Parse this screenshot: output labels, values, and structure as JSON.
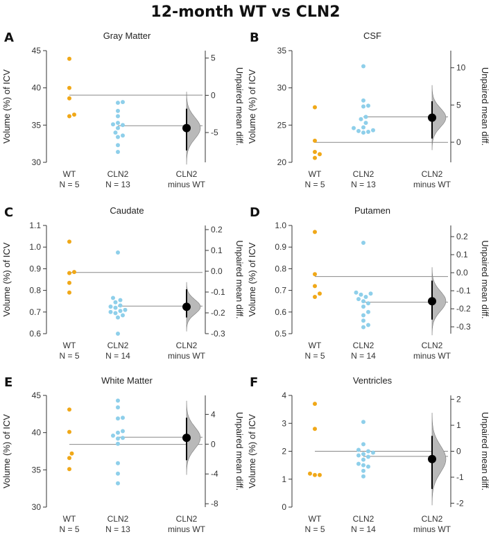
{
  "figure": {
    "title": "12-month WT vs CLN2",
    "colors": {
      "wt": "#F0A818",
      "cln2": "#8ECFEA",
      "axis": "#333333",
      "ref_line": "#888888",
      "dist": "#B9B9B9",
      "effect": "#000000"
    },
    "ylabel_left": "Volume (%) of ICV",
    "ylabel_right": "Unpaired mean diff."
  },
  "chart_data": [
    {
      "type": "scatter",
      "panel": "A",
      "title": "Gray Matter",
      "ylim": [
        30,
        45
      ],
      "yticks": [
        "30",
        "35",
        "40",
        "45"
      ],
      "right_ylim": [
        -9,
        6
      ],
      "right_yticks": [
        "-5",
        "0",
        "5"
      ],
      "groups": [
        {
          "label": "WT",
          "n_label": "N = 5",
          "values": [
            43.9,
            40.0,
            38.6,
            36.4,
            36.2
          ]
        },
        {
          "label": "CLN2",
          "n_label": "N = 13",
          "values": [
            38.1,
            38.0,
            36.9,
            35.3,
            35.1,
            35.0,
            34.0,
            33.6,
            33.4,
            32.3,
            31.4,
            34.6,
            36.2
          ]
        }
      ],
      "effect": {
        "label": "CLN2\nminus WT",
        "mean": 34.6,
        "ci": [
          31.6,
          37.2
        ]
      }
    },
    {
      "type": "scatter",
      "panel": "B",
      "title": "CSF",
      "ylim": [
        20,
        35
      ],
      "yticks": [
        "20",
        "25",
        "30",
        "35"
      ],
      "right_ylim": [
        -2.7,
        12.3
      ],
      "right_yticks": [
        "0",
        "5",
        "10"
      ],
      "groups": [
        {
          "label": "WT",
          "n_label": "N = 5",
          "values": [
            27.4,
            22.9,
            21.4,
            21.1,
            20.6
          ]
        },
        {
          "label": "CLN2",
          "n_label": "N = 13",
          "values": [
            32.9,
            28.3,
            27.6,
            27.5,
            26.1,
            25.8,
            25.3,
            24.7,
            24.3,
            24.2,
            24.1,
            24.0,
            24.6
          ]
        }
      ],
      "effect": {
        "label": "CLN2\nminus WT",
        "mean": 26.0,
        "ci": [
          23.2,
          28.2
        ]
      }
    },
    {
      "type": "scatter",
      "panel": "C",
      "title": "Caudate",
      "ylim": [
        0.6,
        1.1
      ],
      "yticks": [
        "0.6",
        "0.7",
        "0.8",
        "0.9",
        "1.0",
        "1.1"
      ],
      "right_ylim": [
        -0.3,
        0.22
      ],
      "right_yticks": [
        "-0.3",
        "-0.2",
        "-0.1",
        "0.0",
        "0.1",
        "0.2"
      ],
      "groups": [
        {
          "label": "WT",
          "n_label": "N = 5",
          "values": [
            1.025,
            0.885,
            0.88,
            0.835,
            0.79
          ]
        },
        {
          "label": "CLN2",
          "n_label": "N = 14",
          "values": [
            0.975,
            0.765,
            0.755,
            0.745,
            0.73,
            0.725,
            0.72,
            0.71,
            0.705,
            0.7,
            0.695,
            0.685,
            0.675,
            0.6
          ]
        }
      ],
      "effect": {
        "label": "CLN2\nminus WT",
        "mean": 0.724,
        "ci": [
          0.675,
          0.805
        ]
      }
    },
    {
      "type": "scatter",
      "panel": "D",
      "title": "Putamen",
      "ylim": [
        0.5,
        1.0
      ],
      "yticks": [
        "0.5",
        "0.6",
        "0.7",
        "0.8",
        "0.9",
        "1.0"
      ],
      "right_ylim": [
        -0.338,
        0.262
      ],
      "right_yticks": [
        "-0.3",
        "-0.2",
        "-0.1",
        "0.0",
        "0.1",
        "0.2"
      ],
      "groups": [
        {
          "label": "WT",
          "n_label": "N = 5",
          "values": [
            0.97,
            0.775,
            0.72,
            0.685,
            0.67
          ]
        },
        {
          "label": "CLN2",
          "n_label": "N = 14",
          "values": [
            0.92,
            0.69,
            0.685,
            0.68,
            0.67,
            0.66,
            0.65,
            0.64,
            0.625,
            0.6,
            0.585,
            0.56,
            0.54,
            0.53
          ]
        }
      ],
      "effect": {
        "label": "CLN2\nminus WT",
        "mean": 0.65,
        "ci": [
          0.565,
          0.745
        ]
      }
    },
    {
      "type": "scatter",
      "panel": "E",
      "title": "White Matter",
      "ylim": [
        30,
        45
      ],
      "yticks": [
        "30",
        "35",
        "40",
        "45"
      ],
      "right_ylim": [
        -8.45,
        6.55
      ],
      "right_yticks": [
        "-8",
        "-4",
        "0",
        "4"
      ],
      "groups": [
        {
          "label": "WT",
          "n_label": "N = 5",
          "values": [
            43.1,
            40.1,
            37.2,
            36.6,
            35.1
          ]
        },
        {
          "label": "CLN2",
          "n_label": "N = 13",
          "values": [
            44.3,
            43.4,
            42.0,
            41.9,
            40.2,
            40.0,
            39.6,
            39.3,
            39.2,
            38.5,
            35.9,
            34.5,
            33.2
          ]
        }
      ],
      "effect": {
        "label": "CLN2\nminus WT",
        "mean": 39.3,
        "ci": [
          36.3,
          42.0
        ]
      }
    },
    {
      "type": "scatter",
      "panel": "F",
      "title": "Ventricles",
      "ylim": [
        0,
        4
      ],
      "yticks": [
        "0",
        "1",
        "2",
        "3",
        "4"
      ],
      "right_ylim": [
        -2.15,
        2.15
      ],
      "right_yticks": [
        "-2",
        "-1",
        "0",
        "1",
        "2"
      ],
      "groups": [
        {
          "label": "WT",
          "n_label": "N = 5",
          "values": [
            3.7,
            2.8,
            1.2,
            1.15,
            1.15
          ]
        },
        {
          "label": "CLN2",
          "n_label": "N = 14",
          "values": [
            3.05,
            2.25,
            2.05,
            2.0,
            1.95,
            1.9,
            1.85,
            1.8,
            1.7,
            1.55,
            1.5,
            1.45,
            1.3,
            1.1
          ]
        }
      ],
      "effect": {
        "label": "CLN2\nminus WT",
        "mean": 1.72,
        "ci": [
          0.65,
          2.55
        ]
      }
    }
  ]
}
